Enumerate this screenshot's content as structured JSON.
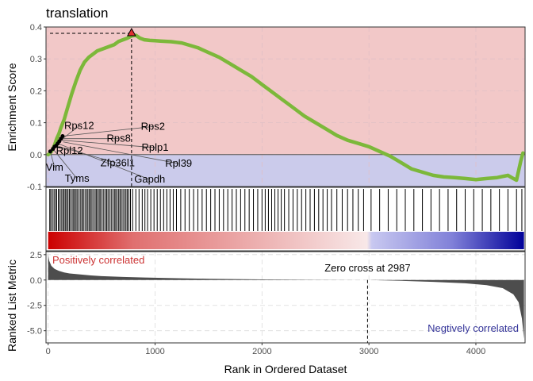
{
  "chart_data": {
    "type": "line",
    "title": "translation",
    "xlabel": "Rank in Ordered Dataset",
    "xlim": [
      -20,
      4460
    ],
    "xticks": [
      0,
      1000,
      2000,
      3000,
      4000
    ],
    "x_tick_labels": [
      "0",
      "1000",
      "2000",
      "3000",
      "4000"
    ],
    "enrichment": {
      "ylabel": "Enrichment Score",
      "ylim": [
        -0.1,
        0.4
      ],
      "yticks": [
        -0.1,
        0.0,
        0.1,
        0.2,
        0.3,
        0.4
      ],
      "y_tick_labels": [
        "-0.1",
        "0.0",
        "0.1",
        "0.2",
        "0.3",
        "0.4"
      ],
      "positive_fill": "#f2c8c8",
      "negative_fill": "#cbcbeb",
      "line_color": "#7cb83a",
      "series": [
        {
          "x": [
            0,
            20,
            40,
            60,
            80,
            100,
            120,
            150,
            180,
            220,
            260,
            300,
            340,
            380,
            420,
            460,
            500,
            540,
            580,
            620,
            660,
            700,
            740,
            780,
            820,
            860,
            900,
            950,
            1000,
            1050,
            1100,
            1150,
            1200,
            1250,
            1300,
            1400,
            1500,
            1600,
            1700,
            1800,
            1900,
            2000,
            2100,
            2200,
            2300,
            2400,
            2500,
            2600,
            2700,
            2800,
            2900,
            3000,
            3100,
            3200,
            3300,
            3400,
            3500,
            3600,
            3700,
            3800,
            3900,
            4000,
            4100,
            4200,
            4300,
            4350,
            4380,
            4400,
            4420,
            4440
          ],
          "y": [
            0.0,
            0.005,
            0.015,
            0.03,
            0.05,
            0.065,
            0.085,
            0.11,
            0.145,
            0.19,
            0.23,
            0.265,
            0.29,
            0.305,
            0.315,
            0.325,
            0.33,
            0.335,
            0.34,
            0.345,
            0.355,
            0.36,
            0.365,
            0.372,
            0.374,
            0.365,
            0.36,
            0.358,
            0.357,
            0.356,
            0.355,
            0.354,
            0.352,
            0.35,
            0.345,
            0.335,
            0.32,
            0.305,
            0.285,
            0.265,
            0.245,
            0.22,
            0.195,
            0.17,
            0.145,
            0.12,
            0.1,
            0.08,
            0.06,
            0.045,
            0.035,
            0.025,
            0.01,
            -0.005,
            -0.025,
            -0.045,
            -0.055,
            -0.065,
            -0.07,
            -0.072,
            -0.075,
            -0.078,
            -0.075,
            -0.072,
            -0.065,
            -0.075,
            -0.08,
            -0.05,
            -0.02,
            0.005
          ]
        }
      ],
      "peak": {
        "x": 780,
        "y": 0.38
      },
      "leading_points": [
        {
          "x": 20,
          "y": 0.01
        },
        {
          "x": 45,
          "y": 0.018
        },
        {
          "x": 60,
          "y": 0.025
        },
        {
          "x": 75,
          "y": 0.028
        },
        {
          "x": 90,
          "y": 0.035
        },
        {
          "x": 105,
          "y": 0.042
        },
        {
          "x": 120,
          "y": 0.05
        },
        {
          "x": 135,
          "y": 0.058
        }
      ],
      "gene_labels": [
        {
          "text": "Vim",
          "x": 20,
          "y": 0.01,
          "lx": 60,
          "ly": -0.04
        },
        {
          "text": "Tyms",
          "x": 45,
          "y": 0.018,
          "lx": 270,
          "ly": -0.075
        },
        {
          "text": "Rpl12",
          "x": 60,
          "y": 0.025,
          "lx": 200,
          "ly": 0.012
        },
        {
          "text": "Zfp36l1",
          "x": 75,
          "y": 0.028,
          "lx": 650,
          "ly": -0.027
        },
        {
          "text": "Gapdh",
          "x": 90,
          "y": 0.035,
          "lx": 950,
          "ly": -0.078
        },
        {
          "text": "Rps12",
          "x": 105,
          "y": 0.042,
          "lx": 290,
          "ly": 0.09
        },
        {
          "text": "Rps8",
          "x": 120,
          "y": 0.05,
          "lx": 660,
          "ly": 0.05
        },
        {
          "text": "Rps2",
          "x": 135,
          "y": 0.058,
          "lx": 980,
          "ly": 0.088
        },
        {
          "text": "Rplp1",
          "x": 130,
          "y": 0.045,
          "lx": 1000,
          "ly": 0.022
        },
        {
          "text": "Rpl39",
          "x": 140,
          "y": 0.04,
          "lx": 1220,
          "ly": -0.028
        }
      ]
    },
    "hits": [
      15,
      25,
      40,
      55,
      68,
      80,
      95,
      108,
      122,
      136,
      148,
      160,
      172,
      185,
      198,
      210,
      225,
      238,
      250,
      262,
      275,
      290,
      305,
      318,
      330,
      345,
      360,
      372,
      385,
      398,
      410,
      425,
      440,
      452,
      465,
      478,
      490,
      505,
      520,
      535,
      548,
      560,
      575,
      590,
      605,
      620,
      632,
      645,
      660,
      672,
      685,
      700,
      715,
      728,
      740,
      755,
      770,
      790,
      820,
      850,
      880,
      905,
      930,
      960,
      990,
      1020,
      1050,
      1080,
      1110,
      1140,
      1170,
      1200,
      1240,
      1280,
      1320,
      1360,
      1400,
      1440,
      1480,
      1520,
      1560,
      1600,
      1640,
      1680,
      1720,
      1760,
      1800,
      1840,
      1880,
      1920,
      1960,
      2000,
      2030,
      2060,
      2090,
      2120,
      2150,
      2180,
      2210,
      2250,
      2290,
      2330,
      2370,
      2410,
      2450,
      2490,
      2530,
      2570,
      2610,
      2650,
      2700,
      2750,
      2800,
      2850,
      2900,
      2950,
      3020,
      3100,
      3180,
      3260,
      3340,
      3420,
      3500,
      3580,
      3660,
      3740,
      3820,
      3900,
      3980,
      4060,
      4140,
      4220,
      4300,
      4380,
      4430
    ],
    "metric": {
      "ylabel": "Ranked List Metric",
      "ylim": [
        -6.2,
        2.8
      ],
      "yticks": [
        2.5,
        0.0,
        -2.5,
        -5.0
      ],
      "y_tick_labels": [
        "2.5",
        "0.0",
        "-2.5",
        "-5.0"
      ],
      "fill_color": "#4d4d4d",
      "x": [
        0,
        10,
        30,
        60,
        100,
        150,
        200,
        300,
        400,
        500,
        700,
        900,
        1200,
        1500,
        2000,
        2500,
        2987,
        3300,
        3600,
        3900,
        4100,
        4250,
        4350,
        4400,
        4430,
        4450
      ],
      "y": [
        2.5,
        1.9,
        1.4,
        1.1,
        0.9,
        0.75,
        0.65,
        0.55,
        0.45,
        0.38,
        0.3,
        0.25,
        0.18,
        0.12,
        0.06,
        0.02,
        0.0,
        -0.08,
        -0.18,
        -0.32,
        -0.5,
        -0.8,
        -1.4,
        -2.2,
        -3.8,
        -5.8
      ],
      "zero_cross": 2987,
      "zero_cross_label": "Zero cross at 2987",
      "pos_label": "Positively correlated",
      "pos_color": "#cc3333",
      "neg_label": "Negtively correlated",
      "neg_color": "#333399"
    },
    "gradient": {
      "high": "#cc0000",
      "mid": "#ffffff",
      "low": "#000099",
      "split": 2987
    }
  }
}
